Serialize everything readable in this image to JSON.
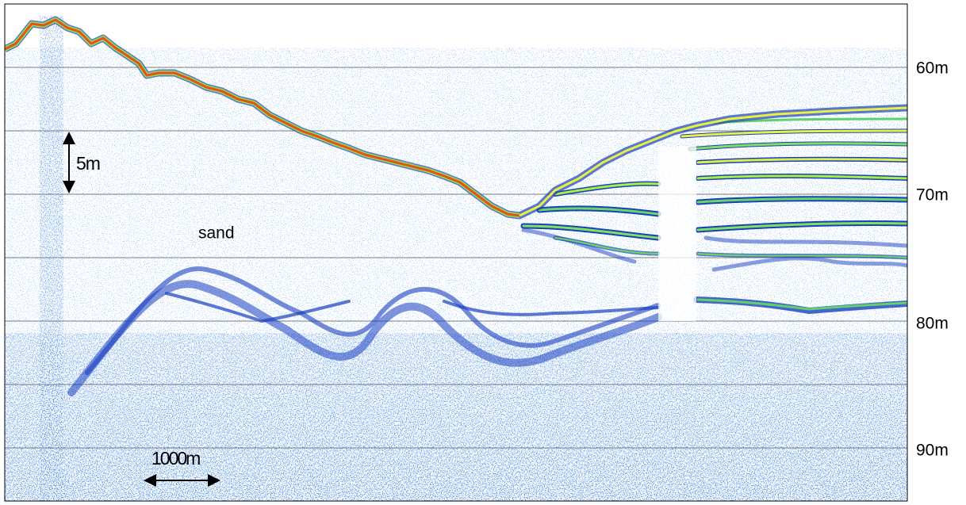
{
  "depth_axis": {
    "ticks": [
      "60m",
      "70m",
      "80m",
      "90m"
    ]
  },
  "annotations": {
    "vertical_scale": "5m",
    "horizontal_scale": "1000m",
    "sediment_label": "sand"
  }
}
